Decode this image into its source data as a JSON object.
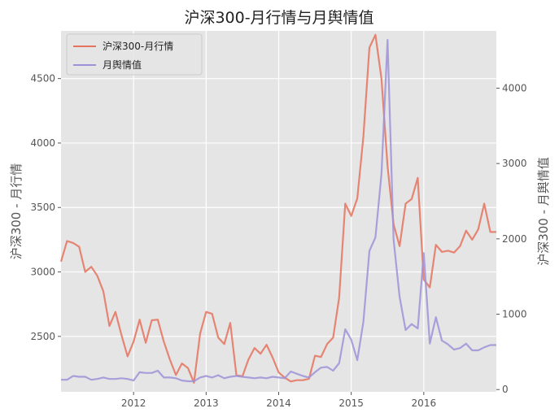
{
  "chart_data": {
    "type": "line",
    "title": "沪深300-月行情与月舆情值",
    "xlabel": "",
    "ylabel_left": "沪深300 - 月行情",
    "ylabel_right": "沪深300 - 月舆情值",
    "xlim": [
      2011.0,
      2017.0
    ],
    "ylim_left": [
      2070,
      4870
    ],
    "ylim_right": [
      -30,
      4760
    ],
    "x_ticks": [
      2012,
      2013,
      2014,
      2015,
      2016
    ],
    "y_ticks_left": [
      2500,
      3000,
      3500,
      4000,
      4500
    ],
    "y_ticks_right": [
      0,
      1000,
      2000,
      3000,
      4000
    ],
    "grid": true,
    "legend_position": "top-left",
    "background": "#e5e5e5",
    "series": [
      {
        "name": "沪深300-月行情",
        "axis": "left",
        "color": "#e5735e",
        "x": [
          2011.0,
          2011.083,
          2011.167,
          2011.25,
          2011.333,
          2011.417,
          2011.5,
          2011.583,
          2011.667,
          2011.75,
          2011.833,
          2011.917,
          2012.0,
          2012.083,
          2012.167,
          2012.25,
          2012.333,
          2012.417,
          2012.5,
          2012.583,
          2012.667,
          2012.75,
          2012.833,
          2012.917,
          2013.0,
          2013.083,
          2013.167,
          2013.25,
          2013.333,
          2013.417,
          2013.5,
          2013.583,
          2013.667,
          2013.75,
          2013.833,
          2013.917,
          2014.0,
          2014.083,
          2014.167,
          2014.25,
          2014.333,
          2014.417,
          2014.5,
          2014.583,
          2014.667,
          2014.75,
          2014.833,
          2014.917,
          2015.0,
          2015.083,
          2015.167,
          2015.25,
          2015.333,
          2015.417,
          2015.5,
          2015.583,
          2015.667,
          2015.75,
          2015.833,
          2015.917,
          2016.0,
          2016.083,
          2016.167,
          2016.25,
          2016.333,
          2016.417,
          2016.5,
          2016.583,
          2016.667,
          2016.75,
          2016.833,
          2016.917,
          2017.0
        ],
        "values": [
          3080,
          3240,
          3225,
          3195,
          3000,
          3040,
          2970,
          2850,
          2580,
          2690,
          2510,
          2345,
          2460,
          2630,
          2450,
          2625,
          2630,
          2460,
          2320,
          2200,
          2290,
          2255,
          2140,
          2520,
          2690,
          2675,
          2490,
          2440,
          2605,
          2200,
          2190,
          2320,
          2410,
          2365,
          2435,
          2335,
          2220,
          2180,
          2150,
          2160,
          2160,
          2170,
          2350,
          2340,
          2440,
          2490,
          2800,
          3530,
          3435,
          3570,
          4050,
          4740,
          4840,
          4500,
          3820,
          3370,
          3200,
          3530,
          3565,
          3730,
          2940,
          2880,
          3210,
          3155,
          3165,
          3150,
          3200,
          3320,
          3250,
          3330,
          3530,
          3310,
          3310
        ]
      },
      {
        "name": "月舆情值",
        "axis": "right",
        "color": "#9e93d8",
        "x": [
          2011.0,
          2011.083,
          2011.167,
          2011.25,
          2011.333,
          2011.417,
          2011.5,
          2011.583,
          2011.667,
          2011.75,
          2011.833,
          2011.917,
          2012.0,
          2012.083,
          2012.167,
          2012.25,
          2012.333,
          2012.417,
          2012.5,
          2012.583,
          2012.667,
          2012.75,
          2012.833,
          2012.917,
          2013.0,
          2013.083,
          2013.167,
          2013.25,
          2013.333,
          2013.417,
          2013.5,
          2013.583,
          2013.667,
          2013.75,
          2013.833,
          2013.917,
          2014.0,
          2014.083,
          2014.167,
          2014.25,
          2014.333,
          2014.417,
          2014.5,
          2014.583,
          2014.667,
          2014.75,
          2014.833,
          2014.917,
          2015.0,
          2015.083,
          2015.167,
          2015.25,
          2015.333,
          2015.417,
          2015.5,
          2015.583,
          2015.667,
          2015.75,
          2015.833,
          2015.917,
          2016.0,
          2016.083,
          2016.167,
          2016.25,
          2016.333,
          2016.417,
          2016.5,
          2016.583,
          2016.667,
          2016.75,
          2016.833,
          2016.917,
          2017.0
        ],
        "values": [
          130,
          130,
          180,
          170,
          170,
          130,
          140,
          160,
          140,
          140,
          150,
          140,
          120,
          230,
          220,
          220,
          250,
          160,
          160,
          150,
          120,
          110,
          110,
          160,
          180,
          160,
          190,
          150,
          170,
          180,
          170,
          160,
          150,
          160,
          150,
          170,
          160,
          150,
          240,
          210,
          180,
          160,
          230,
          290,
          300,
          250,
          350,
          800,
          660,
          390,
          900,
          1840,
          2020,
          2860,
          4640,
          1990,
          1230,
          790,
          870,
          810,
          1810,
          610,
          960,
          650,
          600,
          530,
          550,
          610,
          520,
          520,
          560,
          590,
          590
        ]
      }
    ]
  }
}
